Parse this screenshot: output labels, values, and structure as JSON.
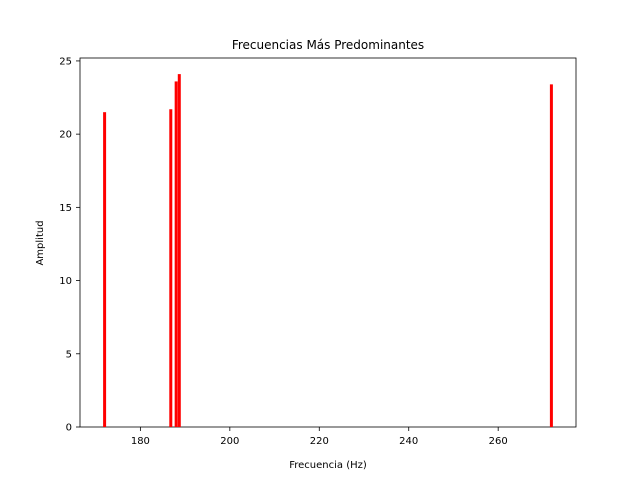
{
  "chart_data": {
    "type": "bar",
    "title": "Frecuencias Más Predominantes",
    "xlabel": "Frecuencia (Hz)",
    "ylabel": "Amplitud",
    "x": [
      172.0,
      186.8,
      188.0,
      188.7,
      271.9
    ],
    "values": [
      21.5,
      21.7,
      23.6,
      24.1,
      23.4
    ],
    "xlim": [
      166.5,
      277.4
    ],
    "ylim": [
      0,
      25.2
    ],
    "xticks": [
      180,
      200,
      220,
      240,
      260
    ],
    "yticks": [
      0,
      5,
      10,
      15,
      20,
      25
    ],
    "bar_color": "#ff0000",
    "grid": false,
    "legend": "none"
  }
}
